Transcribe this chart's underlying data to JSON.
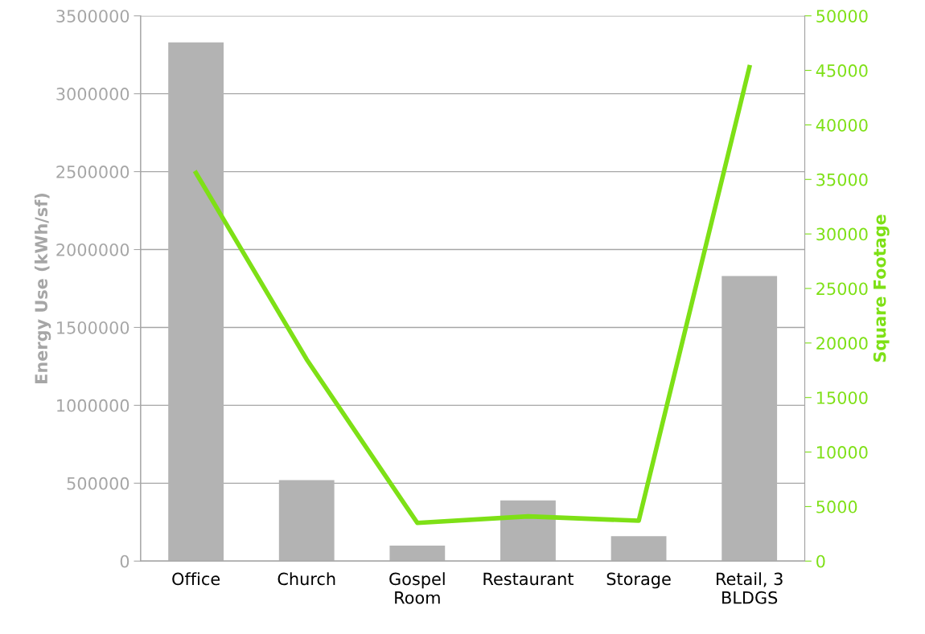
{
  "chart_data": {
    "type": "bar",
    "categories": [
      "Office",
      "Church",
      "Gospel\nRoom",
      "Restaurant",
      "Storage",
      "Retail, 3\nBLDGS"
    ],
    "ylabel": "Energy Use (kWh/sf)",
    "y2label": "Square Footage",
    "series": [
      {
        "color": "#b3b3b3",
        "values": [
          3330000,
          520000,
          100000,
          390000,
          160000,
          1830000
        ]
      },
      {
        "type": "line",
        "axis": "y2",
        "color": "#7ee016",
        "values": [
          35600,
          18500,
          3500,
          4100,
          3700,
          45300
        ]
      }
    ],
    "ylim": [
      0,
      3500000
    ],
    "yticks": [
      0,
      500000,
      1000000,
      1500000,
      2000000,
      2500000,
      3000000,
      3500000
    ],
    "y2lim": [
      0,
      50000
    ],
    "y2ticks": [
      0,
      5000,
      10000,
      15000,
      20000,
      25000,
      30000,
      35000,
      40000,
      45000,
      50000
    ],
    "grid": "y",
    "marker": "none",
    "line_style": "solid"
  }
}
